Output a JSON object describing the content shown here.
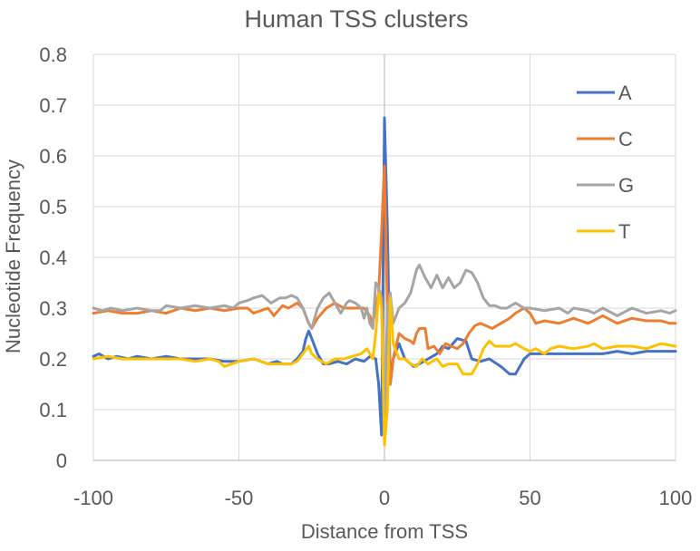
{
  "chart_data": {
    "type": "line",
    "title": "Human TSS clusters",
    "xlabel": "Distance from TSS",
    "ylabel": "Nucleotide Frequency",
    "xlim": [
      -100,
      100
    ],
    "ylim": [
      0,
      0.8
    ],
    "x_ticks": [
      -100,
      -50,
      0,
      50,
      100
    ],
    "x_tick_labels": [
      "-100",
      "-50",
      "0",
      "50",
      "100"
    ],
    "y_ticks": [
      0,
      0.1,
      0.2,
      0.3,
      0.4,
      0.5,
      0.6,
      0.7,
      0.8
    ],
    "y_tick_labels": [
      "0",
      "0.1",
      "0.2",
      "0.3",
      "0.4",
      "0.5",
      "0.6",
      "0.7",
      "0.8"
    ],
    "grid": true,
    "legend_position": "right",
    "series": [
      {
        "name": "A",
        "color": "#4472C4",
        "points": [
          [
            -100,
            0.205
          ],
          [
            -98,
            0.21
          ],
          [
            -95,
            0.2
          ],
          [
            -92,
            0.205
          ],
          [
            -88,
            0.2
          ],
          [
            -85,
            0.205
          ],
          [
            -80,
            0.2
          ],
          [
            -75,
            0.205
          ],
          [
            -70,
            0.2
          ],
          [
            -65,
            0.2
          ],
          [
            -60,
            0.2
          ],
          [
            -55,
            0.195
          ],
          [
            -50,
            0.195
          ],
          [
            -45,
            0.2
          ],
          [
            -40,
            0.19
          ],
          [
            -37,
            0.195
          ],
          [
            -35,
            0.19
          ],
          [
            -32,
            0.19
          ],
          [
            -30,
            0.2
          ],
          [
            -28,
            0.215
          ],
          [
            -27,
            0.24
          ],
          [
            -26,
            0.255
          ],
          [
            -25,
            0.24
          ],
          [
            -23,
            0.21
          ],
          [
            -21,
            0.19
          ],
          [
            -19,
            0.19
          ],
          [
            -16,
            0.195
          ],
          [
            -13,
            0.19
          ],
          [
            -10,
            0.2
          ],
          [
            -7,
            0.195
          ],
          [
            -5,
            0.205
          ],
          [
            -3,
            0.2
          ],
          [
            -2,
            0.15
          ],
          [
            -1,
            0.05
          ],
          [
            0,
            0.675
          ],
          [
            1,
            0.46
          ],
          [
            2,
            0.15
          ],
          [
            3,
            0.2
          ],
          [
            5,
            0.23
          ],
          [
            7,
            0.2
          ],
          [
            10,
            0.185
          ],
          [
            12,
            0.19
          ],
          [
            15,
            0.2
          ],
          [
            18,
            0.21
          ],
          [
            20,
            0.225
          ],
          [
            22,
            0.22
          ],
          [
            25,
            0.24
          ],
          [
            28,
            0.235
          ],
          [
            30,
            0.2
          ],
          [
            33,
            0.195
          ],
          [
            36,
            0.2
          ],
          [
            40,
            0.185
          ],
          [
            43,
            0.17
          ],
          [
            45,
            0.17
          ],
          [
            48,
            0.2
          ],
          [
            50,
            0.21
          ],
          [
            55,
            0.21
          ],
          [
            60,
            0.21
          ],
          [
            65,
            0.21
          ],
          [
            70,
            0.21
          ],
          [
            75,
            0.21
          ],
          [
            80,
            0.215
          ],
          [
            85,
            0.21
          ],
          [
            90,
            0.215
          ],
          [
            95,
            0.215
          ],
          [
            100,
            0.215
          ]
        ]
      },
      {
        "name": "C",
        "color": "#ED7D31",
        "points": [
          [
            -100,
            0.29
          ],
          [
            -95,
            0.295
          ],
          [
            -90,
            0.29
          ],
          [
            -85,
            0.29
          ],
          [
            -80,
            0.295
          ],
          [
            -75,
            0.29
          ],
          [
            -70,
            0.3
          ],
          [
            -65,
            0.295
          ],
          [
            -60,
            0.3
          ],
          [
            -55,
            0.295
          ],
          [
            -50,
            0.3
          ],
          [
            -47,
            0.3
          ],
          [
            -45,
            0.29
          ],
          [
            -40,
            0.3
          ],
          [
            -38,
            0.285
          ],
          [
            -35,
            0.305
          ],
          [
            -33,
            0.3
          ],
          [
            -30,
            0.31
          ],
          [
            -28,
            0.3
          ],
          [
            -26,
            0.27
          ],
          [
            -25,
            0.26
          ],
          [
            -23,
            0.28
          ],
          [
            -20,
            0.3
          ],
          [
            -17,
            0.31
          ],
          [
            -14,
            0.3
          ],
          [
            -11,
            0.3
          ],
          [
            -9,
            0.3
          ],
          [
            -7,
            0.3
          ],
          [
            -5,
            0.285
          ],
          [
            -4,
            0.27
          ],
          [
            -3,
            0.3
          ],
          [
            -2,
            0.33
          ],
          [
            -1,
            0.45
          ],
          [
            0,
            0.58
          ],
          [
            1,
            0.3
          ],
          [
            2,
            0.15
          ],
          [
            3,
            0.2
          ],
          [
            5,
            0.25
          ],
          [
            7,
            0.24
          ],
          [
            9,
            0.235
          ],
          [
            10,
            0.23
          ],
          [
            11,
            0.25
          ],
          [
            12,
            0.26
          ],
          [
            14,
            0.26
          ],
          [
            15,
            0.22
          ],
          [
            17,
            0.225
          ],
          [
            19,
            0.21
          ],
          [
            21,
            0.23
          ],
          [
            23,
            0.225
          ],
          [
            25,
            0.22
          ],
          [
            27,
            0.23
          ],
          [
            29,
            0.25
          ],
          [
            31,
            0.265
          ],
          [
            33,
            0.27
          ],
          [
            35,
            0.265
          ],
          [
            37,
            0.26
          ],
          [
            40,
            0.27
          ],
          [
            43,
            0.28
          ],
          [
            45,
            0.29
          ],
          [
            48,
            0.3
          ],
          [
            50,
            0.29
          ],
          [
            52,
            0.27
          ],
          [
            55,
            0.275
          ],
          [
            60,
            0.27
          ],
          [
            65,
            0.28
          ],
          [
            70,
            0.27
          ],
          [
            75,
            0.285
          ],
          [
            80,
            0.27
          ],
          [
            85,
            0.28
          ],
          [
            90,
            0.275
          ],
          [
            95,
            0.275
          ],
          [
            98,
            0.27
          ],
          [
            100,
            0.27
          ]
        ]
      },
      {
        "name": "G",
        "color": "#A5A5A5",
        "points": [
          [
            -100,
            0.3
          ],
          [
            -97,
            0.295
          ],
          [
            -94,
            0.3
          ],
          [
            -90,
            0.295
          ],
          [
            -85,
            0.3
          ],
          [
            -80,
            0.295
          ],
          [
            -77,
            0.295
          ],
          [
            -75,
            0.305
          ],
          [
            -70,
            0.3
          ],
          [
            -65,
            0.305
          ],
          [
            -60,
            0.3
          ],
          [
            -55,
            0.305
          ],
          [
            -52,
            0.3
          ],
          [
            -50,
            0.31
          ],
          [
            -47,
            0.315
          ],
          [
            -45,
            0.32
          ],
          [
            -42,
            0.325
          ],
          [
            -39,
            0.31
          ],
          [
            -36,
            0.32
          ],
          [
            -34,
            0.32
          ],
          [
            -32,
            0.325
          ],
          [
            -30,
            0.32
          ],
          [
            -28,
            0.3
          ],
          [
            -26,
            0.27
          ],
          [
            -25,
            0.26
          ],
          [
            -23,
            0.3
          ],
          [
            -21,
            0.32
          ],
          [
            -19,
            0.33
          ],
          [
            -17,
            0.31
          ],
          [
            -15,
            0.29
          ],
          [
            -13,
            0.31
          ],
          [
            -12,
            0.315
          ],
          [
            -10,
            0.31
          ],
          [
            -8,
            0.3
          ],
          [
            -7,
            0.28
          ],
          [
            -6,
            0.3
          ],
          [
            -5,
            0.27
          ],
          [
            -4,
            0.26
          ],
          [
            -3,
            0.35
          ],
          [
            -2,
            0.34
          ],
          [
            -1,
            0.32
          ],
          [
            0,
            0.05
          ],
          [
            1,
            0.3
          ],
          [
            2,
            0.33
          ],
          [
            3,
            0.27
          ],
          [
            5,
            0.3
          ],
          [
            7,
            0.31
          ],
          [
            9,
            0.33
          ],
          [
            11,
            0.375
          ],
          [
            12,
            0.385
          ],
          [
            14,
            0.36
          ],
          [
            16,
            0.34
          ],
          [
            18,
            0.365
          ],
          [
            20,
            0.34
          ],
          [
            22,
            0.36
          ],
          [
            24,
            0.34
          ],
          [
            26,
            0.35
          ],
          [
            28,
            0.375
          ],
          [
            30,
            0.37
          ],
          [
            32,
            0.35
          ],
          [
            34,
            0.32
          ],
          [
            36,
            0.305
          ],
          [
            38,
            0.305
          ],
          [
            40,
            0.3
          ],
          [
            42,
            0.3
          ],
          [
            45,
            0.31
          ],
          [
            48,
            0.3
          ],
          [
            50,
            0.3
          ],
          [
            55,
            0.295
          ],
          [
            60,
            0.3
          ],
          [
            63,
            0.29
          ],
          [
            65,
            0.3
          ],
          [
            70,
            0.295
          ],
          [
            72,
            0.29
          ],
          [
            75,
            0.3
          ],
          [
            80,
            0.285
          ],
          [
            85,
            0.3
          ],
          [
            90,
            0.29
          ],
          [
            95,
            0.295
          ],
          [
            98,
            0.29
          ],
          [
            100,
            0.295
          ]
        ]
      },
      {
        "name": "T",
        "color": "#FFC000",
        "points": [
          [
            -100,
            0.2
          ],
          [
            -95,
            0.205
          ],
          [
            -90,
            0.2
          ],
          [
            -85,
            0.2
          ],
          [
            -80,
            0.2
          ],
          [
            -75,
            0.2
          ],
          [
            -70,
            0.2
          ],
          [
            -65,
            0.195
          ],
          [
            -60,
            0.2
          ],
          [
            -57,
            0.195
          ],
          [
            -55,
            0.185
          ],
          [
            -50,
            0.195
          ],
          [
            -45,
            0.2
          ],
          [
            -40,
            0.19
          ],
          [
            -35,
            0.19
          ],
          [
            -32,
            0.19
          ],
          [
            -30,
            0.195
          ],
          [
            -28,
            0.21
          ],
          [
            -26,
            0.225
          ],
          [
            -25,
            0.21
          ],
          [
            -23,
            0.2
          ],
          [
            -20,
            0.19
          ],
          [
            -17,
            0.2
          ],
          [
            -14,
            0.2
          ],
          [
            -11,
            0.205
          ],
          [
            -8,
            0.21
          ],
          [
            -6,
            0.22
          ],
          [
            -4,
            0.2
          ],
          [
            -3,
            0.25
          ],
          [
            -2,
            0.33
          ],
          [
            -1,
            0.3
          ],
          [
            0,
            0.03
          ],
          [
            1,
            0.1
          ],
          [
            2,
            0.32
          ],
          [
            3,
            0.23
          ],
          [
            5,
            0.2
          ],
          [
            7,
            0.2
          ],
          [
            9,
            0.19
          ],
          [
            11,
            0.185
          ],
          [
            13,
            0.2
          ],
          [
            15,
            0.19
          ],
          [
            18,
            0.2
          ],
          [
            20,
            0.185
          ],
          [
            22,
            0.19
          ],
          [
            25,
            0.19
          ],
          [
            27,
            0.17
          ],
          [
            30,
            0.17
          ],
          [
            32,
            0.19
          ],
          [
            34,
            0.22
          ],
          [
            36,
            0.235
          ],
          [
            38,
            0.225
          ],
          [
            40,
            0.225
          ],
          [
            43,
            0.225
          ],
          [
            45,
            0.23
          ],
          [
            48,
            0.22
          ],
          [
            50,
            0.215
          ],
          [
            52,
            0.22
          ],
          [
            55,
            0.21
          ],
          [
            57,
            0.22
          ],
          [
            60,
            0.225
          ],
          [
            65,
            0.22
          ],
          [
            70,
            0.225
          ],
          [
            72,
            0.23
          ],
          [
            75,
            0.22
          ],
          [
            80,
            0.225
          ],
          [
            85,
            0.225
          ],
          [
            90,
            0.22
          ],
          [
            95,
            0.23
          ],
          [
            100,
            0.225
          ]
        ]
      }
    ]
  }
}
